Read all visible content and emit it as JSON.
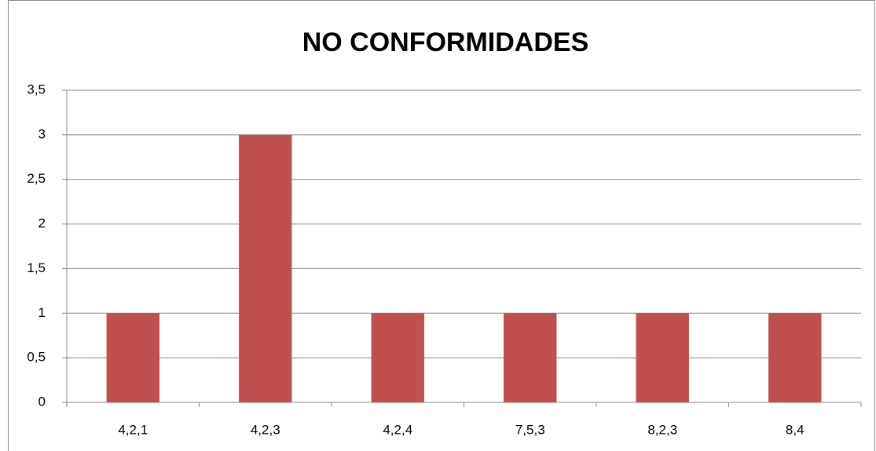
{
  "chart_data": {
    "type": "bar",
    "title": "NO CONFORMIDADES",
    "categories": [
      "4,2,1",
      "4,2,3",
      "4,2,4",
      "7,5,3",
      "8,2,3",
      "8,4"
    ],
    "values": [
      1,
      3,
      1,
      1,
      1,
      1
    ],
    "color": "#c0504d",
    "ylim": [
      0,
      3.5
    ],
    "yticks": [
      0,
      {
        "value": 0.5,
        "label": "0,5"
      },
      1,
      {
        "value": 1.5,
        "label": "1,5"
      },
      2,
      {
        "value": 2.5,
        "label": "2,5"
      },
      3,
      {
        "value": 3.5,
        "label": "3,5"
      }
    ],
    "grid": true
  }
}
